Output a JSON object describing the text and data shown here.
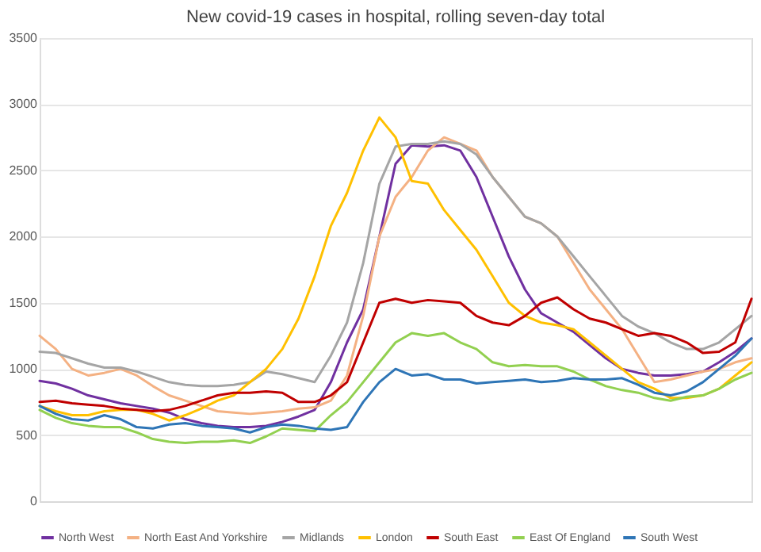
{
  "chart_data": {
    "type": "line",
    "title": "New covid-19 cases in hospital, rolling seven-day total",
    "categories": [
      null,
      null,
      null,
      null,
      null,
      null,
      null,
      null,
      null,
      null,
      null,
      null,
      null,
      null,
      null,
      null,
      null,
      null,
      null,
      null,
      null,
      null,
      null,
      null,
      null,
      null,
      null,
      null,
      null,
      null,
      null,
      null,
      null,
      null,
      null,
      null,
      null,
      null,
      null,
      null,
      null,
      null,
      null,
      null,
      null
    ],
    "ylim": [
      0,
      3500
    ],
    "yticks": [
      0,
      500,
      1000,
      1500,
      2000,
      2500,
      3000,
      3500
    ],
    "grid": "y",
    "legend": "bottom",
    "tick_labels": "y",
    "line_style": "solid",
    "marker": "none",
    "series": [
      {
        "name": "North West",
        "color": "#7030a0",
        "values": [
          910,
          890,
          850,
          800,
          770,
          740,
          720,
          700,
          670,
          620,
          590,
          570,
          560,
          560,
          570,
          600,
          640,
          690,
          900,
          1200,
          1450,
          2000,
          2550,
          2690,
          2680,
          2690,
          2650,
          2450,
          2150,
          1850,
          1600,
          1420,
          1350,
          1280,
          1180,
          1080,
          1000,
          970,
          950,
          950,
          960,
          980,
          1050,
          1130,
          1230
        ]
      },
      {
        "name": "North East And Yorkshire",
        "color": "#f4b183",
        "values": [
          1250,
          1150,
          1000,
          950,
          970,
          1000,
          950,
          870,
          800,
          760,
          720,
          680,
          670,
          660,
          670,
          680,
          700,
          710,
          760,
          950,
          1400,
          2000,
          2300,
          2450,
          2650,
          2750,
          2700,
          2650,
          2450,
          2300,
          2150,
          2100,
          2000,
          1800,
          1600,
          1450,
          1300,
          1100,
          900,
          920,
          950,
          980,
          1000,
          1050,
          1080
        ]
      },
      {
        "name": "Midlands",
        "color": "#a5a5a5",
        "values": [
          1130,
          1120,
          1080,
          1040,
          1010,
          1010,
          980,
          940,
          900,
          880,
          870,
          870,
          880,
          900,
          980,
          960,
          930,
          900,
          1100,
          1350,
          1800,
          2400,
          2680,
          2700,
          2700,
          2720,
          2700,
          2620,
          2450,
          2300,
          2150,
          2100,
          2000,
          1850,
          1700,
          1550,
          1400,
          1320,
          1270,
          1200,
          1150,
          1150,
          1200,
          1300,
          1400
        ]
      },
      {
        "name": "London",
        "color": "#ffc000",
        "values": [
          720,
          680,
          650,
          650,
          680,
          690,
          690,
          660,
          610,
          650,
          700,
          760,
          800,
          900,
          1000,
          1150,
          1380,
          1700,
          2080,
          2330,
          2650,
          2900,
          2750,
          2420,
          2400,
          2200,
          2050,
          1900,
          1700,
          1500,
          1400,
          1350,
          1330,
          1300,
          1200,
          1100,
          1000,
          900,
          850,
          780,
          780,
          800,
          850,
          950,
          1050
        ]
      },
      {
        "name": "South East",
        "color": "#c00000",
        "values": [
          750,
          760,
          740,
          730,
          720,
          700,
          690,
          680,
          690,
          720,
          760,
          800,
          820,
          820,
          830,
          820,
          750,
          750,
          800,
          900,
          1200,
          1500,
          1530,
          1500,
          1520,
          1510,
          1500,
          1400,
          1350,
          1330,
          1400,
          1500,
          1540,
          1450,
          1380,
          1350,
          1300,
          1250,
          1270,
          1250,
          1200,
          1120,
          1130,
          1200,
          1530
        ]
      },
      {
        "name": "East Of England",
        "color": "#92d050",
        "values": [
          690,
          630,
          590,
          570,
          560,
          560,
          520,
          470,
          450,
          440,
          450,
          450,
          460,
          440,
          490,
          550,
          540,
          530,
          650,
          750,
          900,
          1050,
          1200,
          1270,
          1250,
          1270,
          1200,
          1150,
          1050,
          1020,
          1030,
          1020,
          1020,
          980,
          920,
          870,
          840,
          820,
          780,
          760,
          790,
          800,
          850,
          920,
          970
        ]
      },
      {
        "name": "South West",
        "color": "#2e75b6",
        "values": [
          720,
          660,
          620,
          610,
          650,
          620,
          560,
          550,
          580,
          590,
          570,
          560,
          550,
          520,
          560,
          580,
          570,
          550,
          540,
          560,
          750,
          900,
          1000,
          950,
          960,
          920,
          920,
          890,
          900,
          910,
          920,
          900,
          910,
          930,
          920,
          920,
          930,
          880,
          820,
          800,
          830,
          900,
          1000,
          1100,
          1230
        ]
      }
    ]
  }
}
